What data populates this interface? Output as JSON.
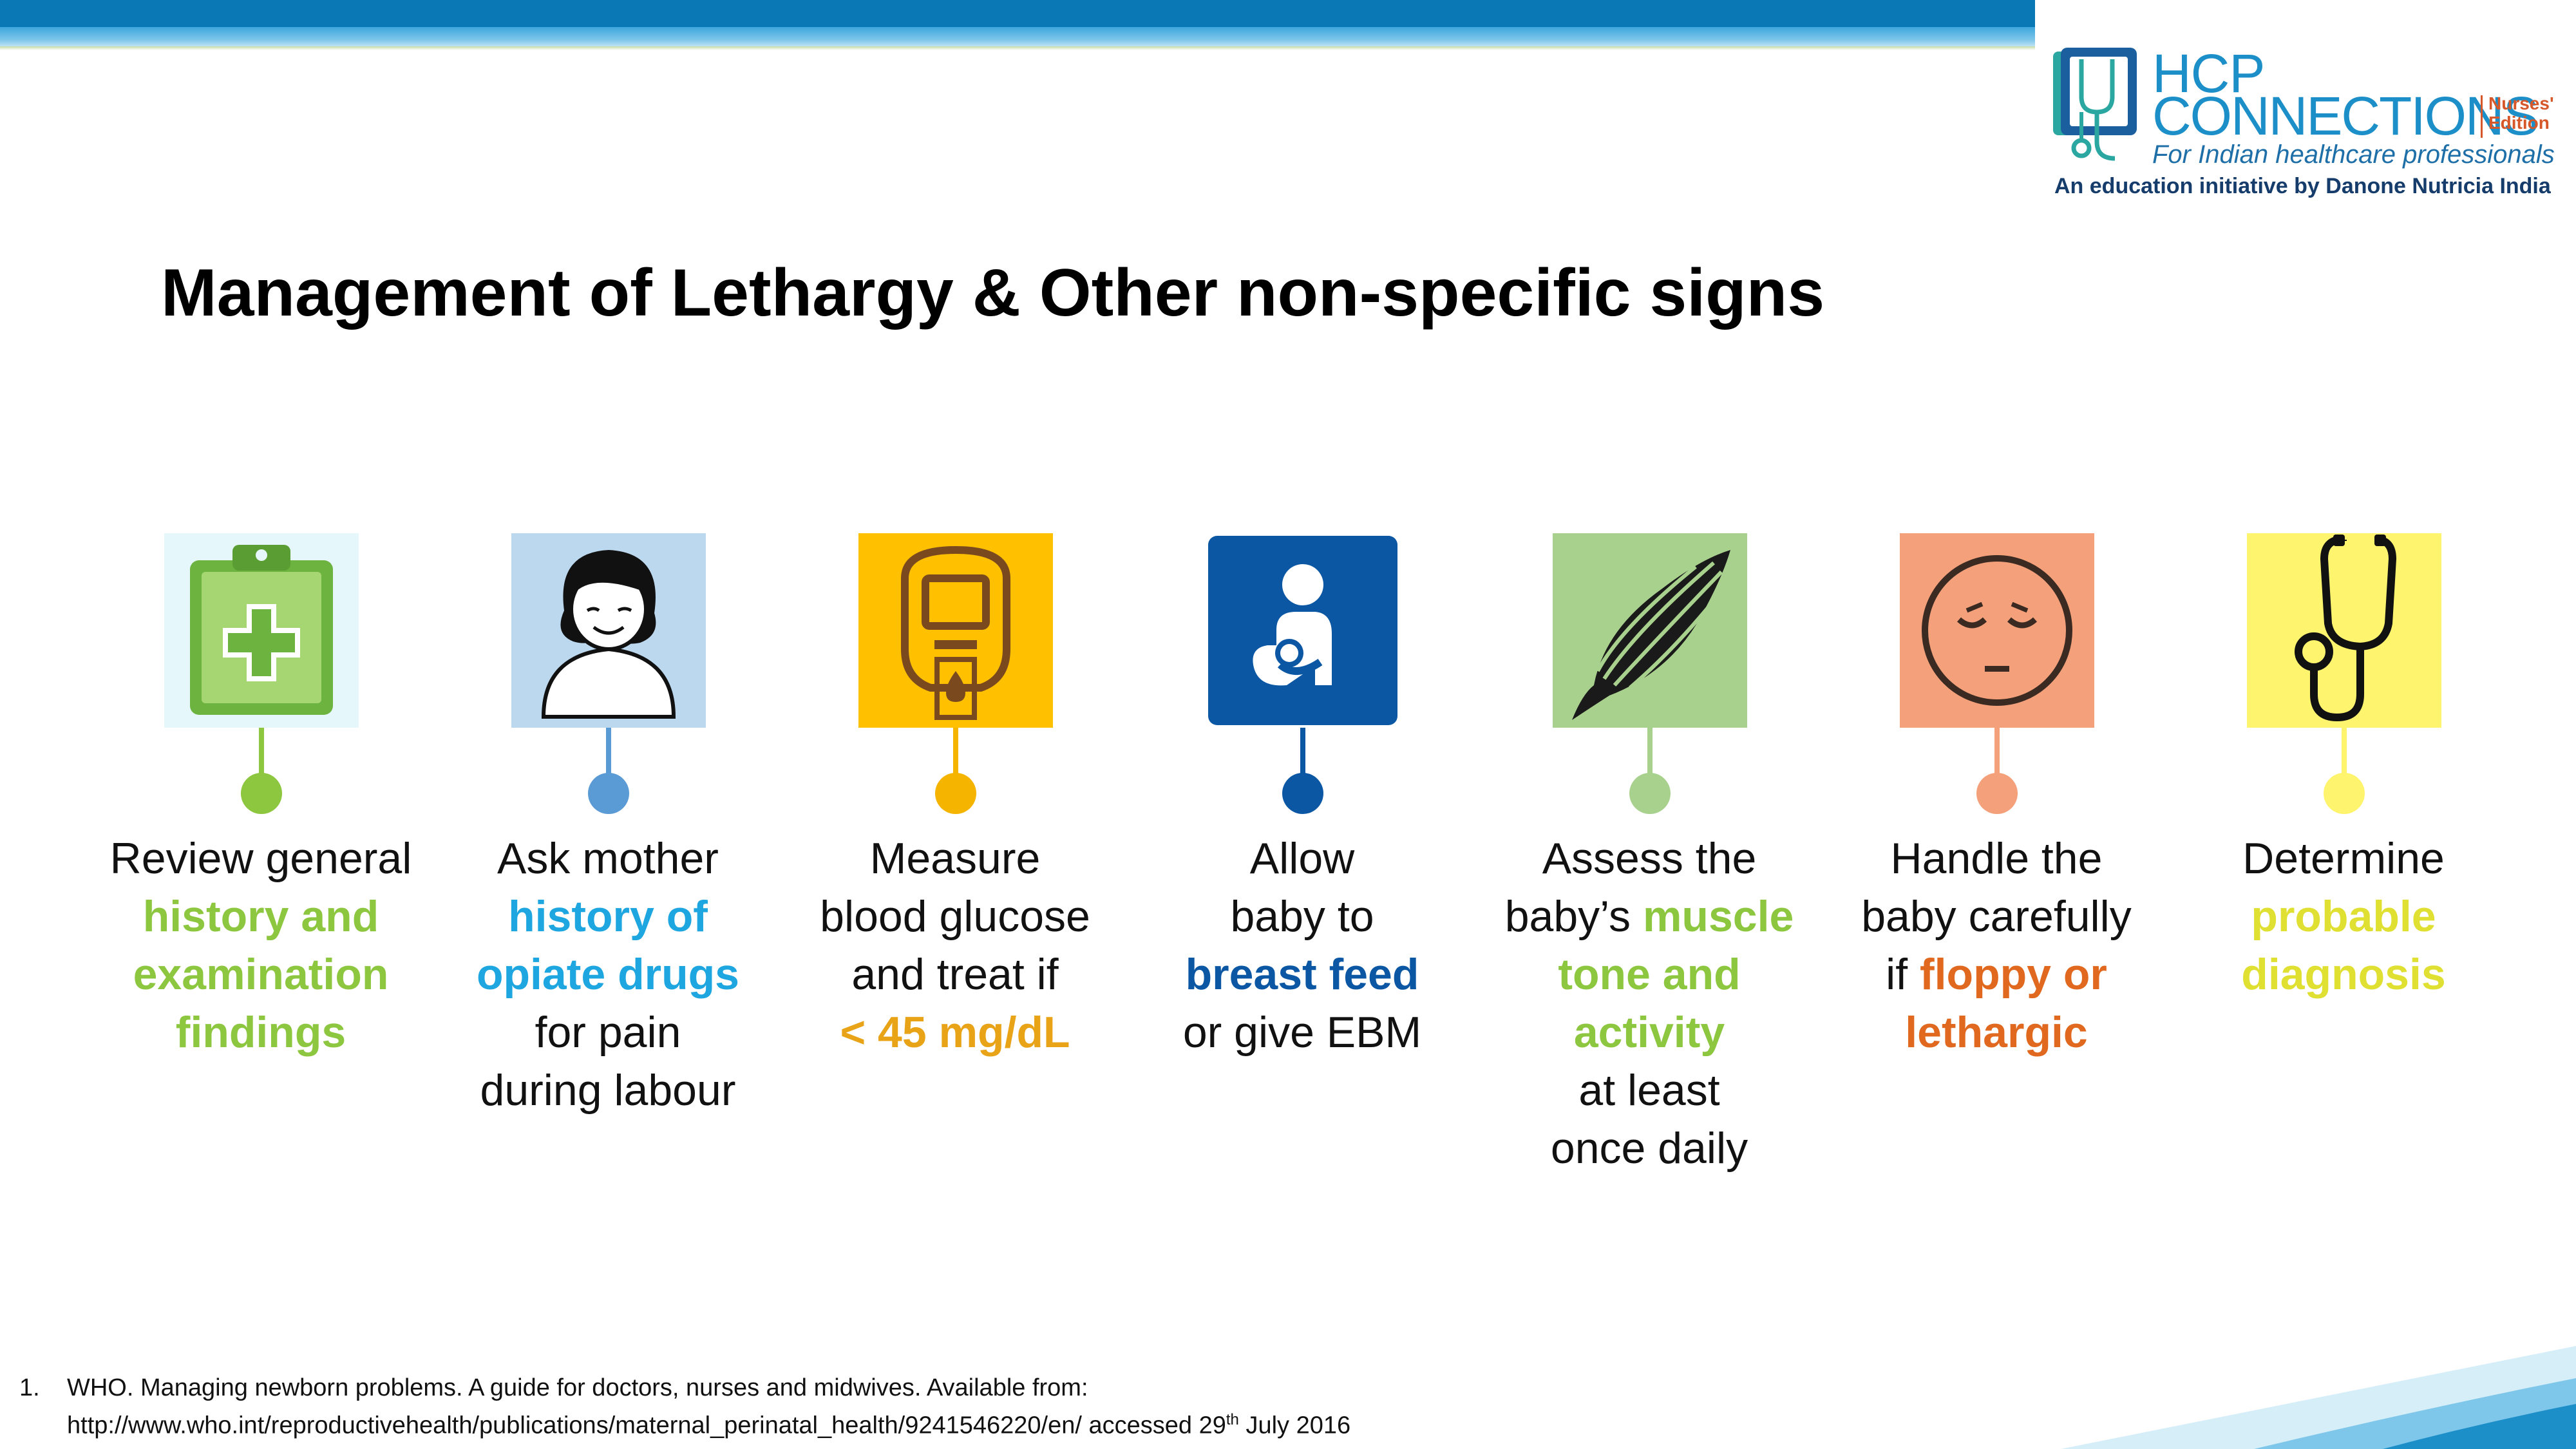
{
  "logo": {
    "hcp": "HCP",
    "connections": "CONNECTIONS",
    "edition_line1": "Nurses'",
    "edition_line2": "Edition",
    "tagline": "For Indian healthcare professionals",
    "initiative": "An education initiative by Danone Nutricia India"
  },
  "title": "Management of Lethargy & Other non-specific signs",
  "steps": [
    {
      "icon": "clipboard-medical-icon",
      "color": "#8dc63f",
      "lines": [
        {
          "text": "Review general",
          "highlight": false
        },
        {
          "text": "history and",
          "highlight": true
        },
        {
          "text": "examination",
          "highlight": true
        },
        {
          "text": "findings",
          "highlight": true
        }
      ]
    },
    {
      "icon": "mother-icon",
      "color": "#1ea6e0",
      "lines": [
        {
          "text": "Ask mother",
          "highlight": false
        },
        {
          "text": "history of",
          "highlight": true
        },
        {
          "text": "opiate drugs",
          "highlight": true
        },
        {
          "text": "for pain",
          "highlight": false
        },
        {
          "text": "during labour",
          "highlight": false
        }
      ]
    },
    {
      "icon": "glucose-meter-icon",
      "color": "#e8a317",
      "lines": [
        {
          "text": "Measure",
          "highlight": false
        },
        {
          "text": "blood glucose",
          "highlight": false
        },
        {
          "text": "and treat if",
          "highlight": false
        },
        {
          "text": "< 45 mg/dL",
          "highlight": true
        }
      ]
    },
    {
      "icon": "breastfeeding-icon",
      "color": "#0b57a4",
      "lines": [
        {
          "text": "Allow",
          "highlight": false
        },
        {
          "text": "baby to",
          "highlight": false
        },
        {
          "text": "breast feed",
          "highlight": true
        },
        {
          "text": "or give EBM",
          "highlight": false
        }
      ]
    },
    {
      "icon": "muscle-icon",
      "color": "#8dc63f",
      "lines": [
        {
          "text": "Assess the",
          "highlight": false
        },
        {
          "text": "baby’s muscle",
          "highlight": "muscle"
        },
        {
          "text": "tone and",
          "highlight": true
        },
        {
          "text": "activity",
          "highlight": true
        },
        {
          "text": "at least",
          "highlight": false
        },
        {
          "text": "once daily",
          "highlight": false
        }
      ]
    },
    {
      "icon": "sleepy-face-icon",
      "color": "#e0691f",
      "lines": [
        {
          "text": "Handle the",
          "highlight": false
        },
        {
          "text": "baby carefully",
          "highlight": false
        },
        {
          "text": "if floppy or",
          "highlight": "floppy or"
        },
        {
          "text": "lethargic",
          "highlight": true
        }
      ]
    },
    {
      "icon": "stethoscope-icon",
      "color": "#dfe032",
      "lines": [
        {
          "text": "Determine",
          "highlight": false
        },
        {
          "text": "probable",
          "highlight": true
        },
        {
          "text": "diagnosis",
          "highlight": true
        }
      ]
    }
  ],
  "footnote": {
    "number": "1.",
    "line1": "WHO. Managing newborn problems. A guide for doctors, nurses and midwives.  Available from:",
    "line2": "http://www.who.int/reproductivehealth/publications/maternal_perinatal_health/9241546220/en/ accessed 29",
    "line2_sup": "th",
    "line2_end": " July 2016"
  }
}
